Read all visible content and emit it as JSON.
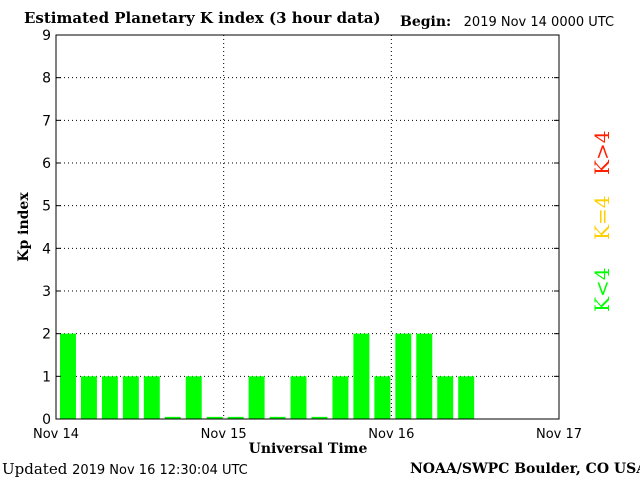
{
  "header": {
    "title": "Estimated Planetary K index (3 hour data)",
    "begin_label": "Begin:",
    "begin_value": "2019 Nov 14 0000 UTC"
  },
  "footer": {
    "updated_label": "Updated",
    "updated_value": "2019 Nov 16 12:30:04 UTC",
    "credit": "NOAA/SWPC Boulder, CO USA"
  },
  "legend": {
    "above": {
      "label": "K>4",
      "color": "#ff2000"
    },
    "equal": {
      "label": "K=4",
      "color": "#ffd000"
    },
    "below": {
      "label": "K<4",
      "color": "#00ff00"
    }
  },
  "chart_data": {
    "type": "bar",
    "title": "Estimated Planetary K index (3 hour data)",
    "xlabel": "Universal Time",
    "ylabel": "Kp index",
    "ylim": [
      0,
      9
    ],
    "yticks": [
      "0",
      "1",
      "2",
      "3",
      "4",
      "5",
      "6",
      "7",
      "8",
      "9"
    ],
    "xticks": [
      "Nov 14",
      "Nov 15",
      "Nov 16",
      "Nov 17"
    ],
    "interval_hours": 3,
    "grid": true,
    "bar_color": "#00ff00",
    "values": [
      2,
      1,
      1,
      1,
      1,
      0.05,
      1,
      0.05,
      0.05,
      1,
      0.05,
      1,
      0.05,
      1,
      2,
      1,
      2,
      2,
      1,
      1
    ]
  }
}
